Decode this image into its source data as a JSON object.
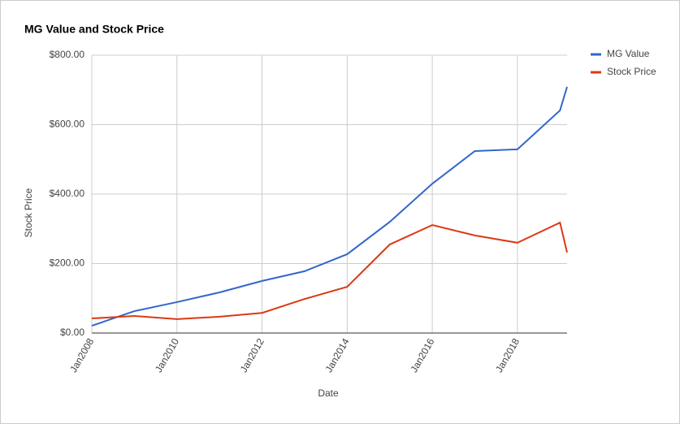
{
  "chart_data": {
    "type": "line",
    "title": "MG Value and Stock Price",
    "x_label": "Date",
    "y_label": "Stock Price",
    "x": [
      "2008-01",
      "2009-01",
      "2010-01",
      "2011-01",
      "2012-01",
      "2013-01",
      "2014-01",
      "2015-01",
      "2016-01",
      "2017-01",
      "2018-01",
      "2019-01",
      "2019-03"
    ],
    "series": [
      {
        "name": "MG Value",
        "color": "#3366cc",
        "values": [
          21,
          63,
          89,
          117,
          150,
          178,
          227,
          320,
          430,
          524,
          529,
          641,
          709
        ]
      },
      {
        "name": "Stock Price",
        "color": "#dc3912",
        "values": [
          42,
          49,
          40,
          47,
          58,
          98,
          133,
          255,
          311,
          281,
          260,
          318,
          232
        ]
      }
    ],
    "xlim": [
      "2008-01",
      "2019-03"
    ],
    "xticks": [
      {
        "value": "2008-01",
        "label": "Jan2008"
      },
      {
        "value": "2010-01",
        "label": "Jan2010"
      },
      {
        "value": "2012-01",
        "label": "Jan2012"
      },
      {
        "value": "2014-01",
        "label": "Jan2014"
      },
      {
        "value": "2016-01",
        "label": "Jan2016"
      },
      {
        "value": "2018-01",
        "label": "Jan2018"
      }
    ],
    "ylim": [
      0,
      800
    ],
    "yticks": [
      {
        "value": 0,
        "label": "$0.00"
      },
      {
        "value": 200,
        "label": "$200.00"
      },
      {
        "value": 400,
        "label": "$400.00"
      },
      {
        "value": 600,
        "label": "$600.00"
      },
      {
        "value": 800,
        "label": "$800.00"
      }
    ],
    "grid": true,
    "legend": "right"
  }
}
